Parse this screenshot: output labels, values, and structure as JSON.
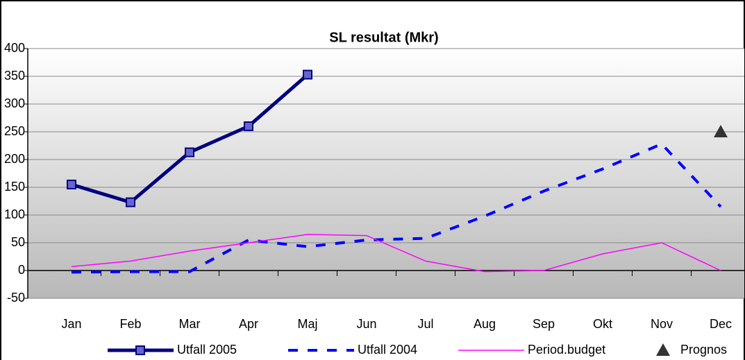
{
  "chart_data": {
    "type": "line",
    "title": "SL resultat (Mkr)",
    "categories": [
      "Jan",
      "Feb",
      "Mar",
      "Apr",
      "Maj",
      "Jun",
      "Jul",
      "Aug",
      "Sep",
      "Okt",
      "Nov",
      "Dec"
    ],
    "series": [
      {
        "name": "Utfall 2005",
        "color": "#000080",
        "style": "solid",
        "width": 5,
        "marker": "square",
        "values": [
          155,
          123,
          213,
          260,
          353,
          null,
          null,
          null,
          null,
          null,
          null,
          null
        ]
      },
      {
        "name": "Utfall 2004",
        "color": "#0000ff",
        "style": "dashed",
        "width": 4,
        "marker": "none",
        "values": [
          -3,
          -2,
          -2,
          55,
          43,
          55,
          58,
          98,
          143,
          183,
          228,
          115
        ]
      },
      {
        "name": "Period.budget",
        "color": "#ff00ff",
        "style": "solid",
        "width": 1.5,
        "marker": "none",
        "values": [
          7,
          17,
          35,
          50,
          65,
          63,
          17,
          -2,
          0,
          30,
          50,
          0
        ]
      },
      {
        "name": "Prognos",
        "color": "#333333",
        "style": "none",
        "width": 0,
        "marker": "triangle",
        "values": [
          null,
          null,
          null,
          null,
          null,
          null,
          null,
          null,
          null,
          null,
          null,
          250
        ]
      }
    ],
    "ylim": [
      -50,
      400
    ],
    "yticks": [
      -50,
      0,
      50,
      100,
      150,
      200,
      250,
      300,
      350,
      400
    ],
    "grid": true,
    "legend": "bottom"
  }
}
